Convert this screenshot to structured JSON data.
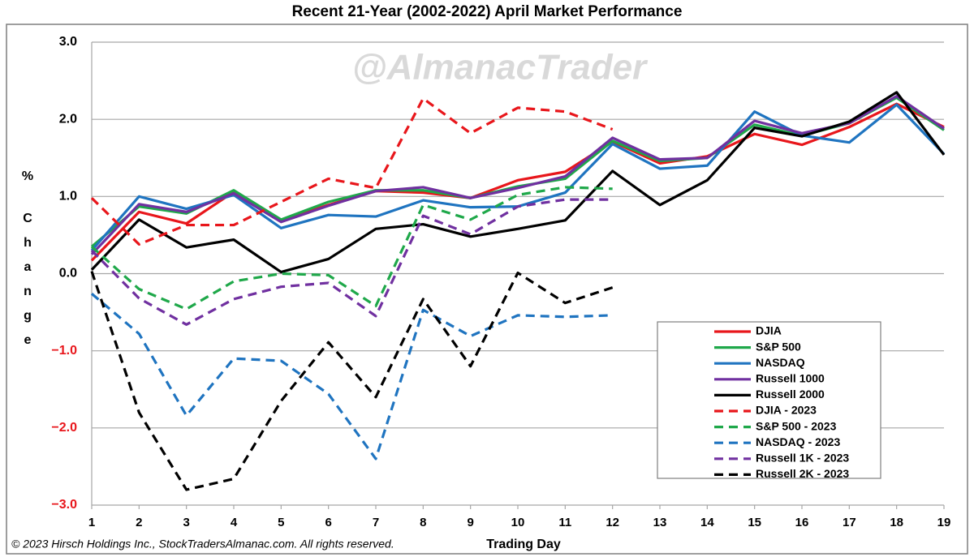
{
  "chart_data": {
    "type": "line",
    "title": "Recent 21-Year (2002-2022) April Market Performance",
    "watermark": "@AlmanacTrader",
    "y_label": [
      "%",
      "Change"
    ],
    "x_label": "Trading Day",
    "footer": "© 2023 Hirsch Holdings Inc., StockTradersAlmanac.com. All rights reserved.",
    "x": [
      1,
      2,
      3,
      4,
      5,
      6,
      7,
      8,
      9,
      10,
      11,
      12,
      13,
      14,
      15,
      16,
      17,
      18,
      19
    ],
    "xlim": [
      1,
      19
    ],
    "xticks": [
      1,
      2,
      3,
      4,
      5,
      6,
      7,
      8,
      9,
      10,
      11,
      12,
      13,
      14,
      15,
      16,
      17,
      18,
      19
    ],
    "ylim": [
      -3,
      3
    ],
    "yticks": [
      {
        "value": -3,
        "label": "−3.0"
      },
      {
        "value": -2,
        "label": "−2.0"
      },
      {
        "value": -1,
        "label": "−1.0"
      },
      {
        "value": 0,
        "label": "0.0"
      },
      {
        "value": 1,
        "label": "1.0"
      },
      {
        "value": 2,
        "label": "2.0"
      },
      {
        "value": 3,
        "label": "3.0"
      }
    ],
    "negative_tick_color": "#e8161b",
    "grid": true,
    "legend": "lower right",
    "series": [
      {
        "name": "DJIA",
        "color": "#e8161b",
        "style": "solid",
        "values": [
          0.17,
          0.8,
          0.65,
          1.06,
          0.69,
          0.89,
          1.07,
          1.05,
          0.98,
          1.21,
          1.32,
          1.71,
          1.43,
          1.52,
          1.81,
          1.67,
          1.9,
          2.2,
          1.9
        ]
      },
      {
        "name": "S&P 500",
        "color": "#1fa84a",
        "style": "solid",
        "values": [
          0.35,
          0.87,
          0.78,
          1.08,
          0.7,
          0.93,
          1.08,
          1.08,
          0.98,
          1.13,
          1.23,
          1.72,
          1.46,
          1.5,
          1.93,
          1.79,
          1.95,
          2.28,
          1.86
        ]
      },
      {
        "name": "NASDAQ",
        "color": "#1f74c0",
        "style": "solid",
        "values": [
          0.3,
          1.0,
          0.84,
          1.02,
          0.59,
          0.76,
          0.74,
          0.95,
          0.86,
          0.87,
          1.05,
          1.68,
          1.36,
          1.4,
          2.1,
          1.79,
          1.7,
          2.19,
          1.55
        ]
      },
      {
        "name": "Russell 1000",
        "color": "#7030a0",
        "style": "solid",
        "values": [
          0.25,
          0.9,
          0.8,
          1.04,
          0.67,
          0.88,
          1.07,
          1.12,
          0.98,
          1.11,
          1.26,
          1.76,
          1.48,
          1.5,
          1.98,
          1.82,
          1.95,
          2.3,
          1.88
        ]
      },
      {
        "name": "Russell 2000",
        "color": "#000000",
        "style": "solid",
        "values": [
          0.05,
          0.7,
          0.34,
          0.44,
          0.02,
          0.19,
          0.58,
          0.64,
          0.48,
          0.58,
          0.69,
          1.33,
          0.89,
          1.21,
          1.89,
          1.78,
          1.97,
          2.35,
          1.54
        ]
      },
      {
        "name": "DJIA - 2023",
        "color": "#e8161b",
        "style": "dashed",
        "values": [
          0.98,
          0.38,
          0.63,
          0.63,
          0.93,
          1.23,
          1.11,
          2.27,
          1.82,
          2.15,
          2.1,
          1.87,
          null,
          null,
          null,
          null,
          null,
          null,
          null
        ]
      },
      {
        "name": "S&P 500 - 2023",
        "color": "#1fa84a",
        "style": "dashed",
        "values": [
          0.35,
          -0.2,
          -0.46,
          -0.1,
          0.0,
          -0.02,
          -0.42,
          0.89,
          0.7,
          1.02,
          1.12,
          1.1,
          null,
          null,
          null,
          null,
          null,
          null,
          null
        ]
      },
      {
        "name": "NASDAQ - 2023",
        "color": "#1f74c0",
        "style": "dashed",
        "values": [
          -0.26,
          -0.78,
          -1.84,
          -1.1,
          -1.13,
          -1.56,
          -2.4,
          -0.47,
          -0.81,
          -0.54,
          -0.56,
          -0.54,
          null,
          null,
          null,
          null,
          null,
          null,
          null
        ]
      },
      {
        "name": "Russell 1K - 2023",
        "color": "#7030a0",
        "style": "dashed",
        "values": [
          0.3,
          -0.32,
          -0.66,
          -0.33,
          -0.17,
          -0.12,
          -0.55,
          0.75,
          0.51,
          0.87,
          0.96,
          0.96,
          null,
          null,
          null,
          null,
          null,
          null,
          null
        ]
      },
      {
        "name": "Russell 2K - 2023",
        "color": "#000000",
        "style": "dashed",
        "values": [
          0.03,
          -1.8,
          -2.8,
          -2.66,
          -1.65,
          -0.89,
          -1.6,
          -0.33,
          -1.2,
          0.01,
          -0.38,
          -0.18,
          null,
          null,
          null,
          null,
          null,
          null,
          null
        ]
      }
    ]
  }
}
